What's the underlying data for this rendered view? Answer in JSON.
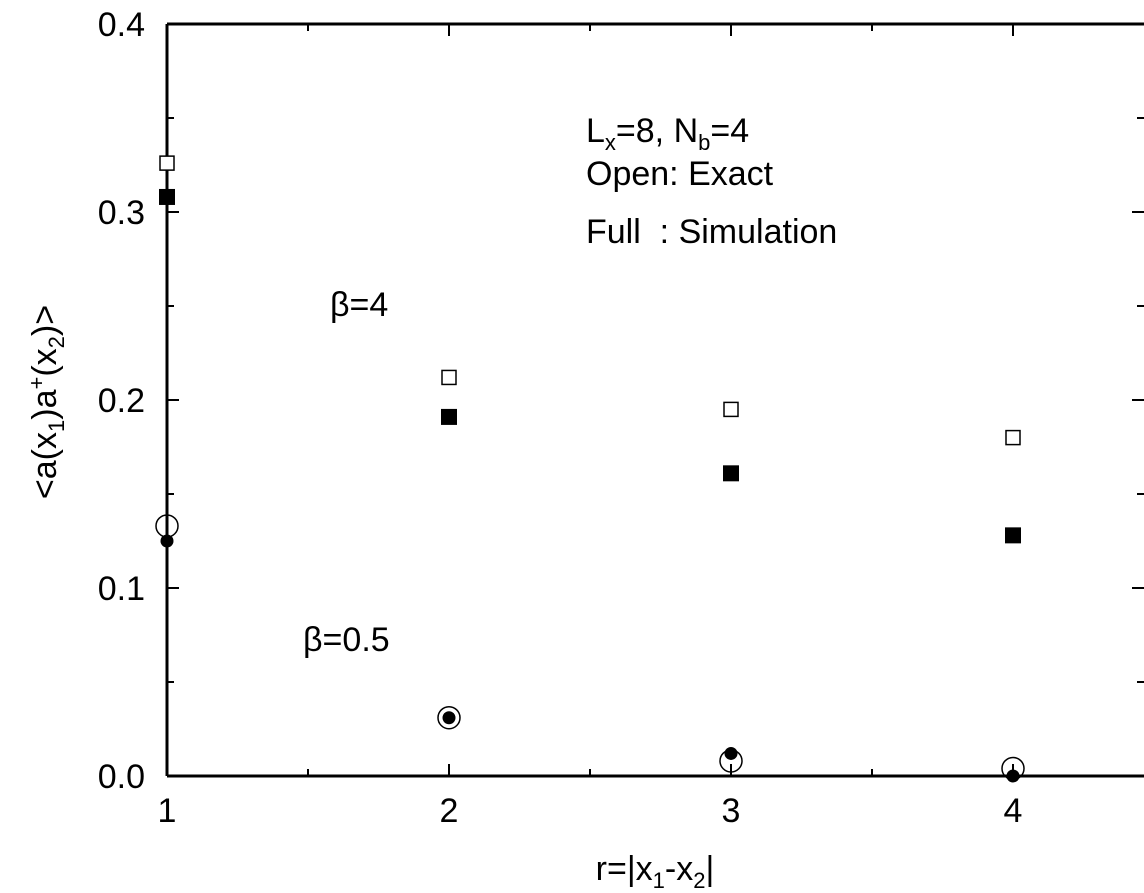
{
  "chart_data": {
    "type": "scatter",
    "xlabel": {
      "main": "r=|x",
      "sub1": "1",
      "mid": "-x",
      "sub2": "2",
      "end": "|"
    },
    "ylabel": {
      "a": "<a(x",
      "sub1": "1",
      "b": ")a",
      "sup": "+",
      "c": "(x",
      "sub2": "2",
      "d": ")>"
    },
    "xlim": [
      1,
      5
    ],
    "ylim": [
      0,
      0.4
    ],
    "x_ticks": [
      {
        "value": 1,
        "label": "1"
      },
      {
        "value": 2,
        "label": "2"
      },
      {
        "value": 3,
        "label": "3"
      },
      {
        "value": 4,
        "label": "4"
      }
    ],
    "y_ticks": [
      {
        "value": 0.0,
        "label": "0.0"
      },
      {
        "value": 0.1,
        "label": "0.1"
      },
      {
        "value": 0.2,
        "label": "0.2"
      },
      {
        "value": 0.3,
        "label": "0.3"
      },
      {
        "value": 0.4,
        "label": "0.4"
      }
    ],
    "legend": {
      "line1": {
        "a": "L",
        "sub1": "x",
        "b": "=8, N",
        "sub2": "b",
        "c": "=4"
      },
      "line2": "Open: Exact",
      "line3": "Full  : Simulation"
    },
    "annotations": {
      "beta4": "β=4",
      "beta05": "β=0.5"
    },
    "series": [
      {
        "marker": "square-open",
        "x": [
          1,
          2,
          3,
          4
        ],
        "y": [
          0.326,
          0.212,
          0.195,
          0.18
        ]
      },
      {
        "marker": "square-filled",
        "x": [
          1,
          2,
          3,
          4
        ],
        "y": [
          0.308,
          0.191,
          0.161,
          0.128
        ]
      },
      {
        "marker": "circle-open",
        "x": [
          1,
          2,
          3,
          4
        ],
        "y": [
          0.133,
          0.031,
          0.008,
          0.004
        ]
      },
      {
        "marker": "circle-filled",
        "x": [
          1,
          2,
          3,
          4
        ],
        "y": [
          0.125,
          0.031,
          0.012,
          0.0
        ]
      }
    ],
    "colors": {
      "axis": "#000000",
      "marker": "#000000",
      "background": "#ffffff"
    }
  }
}
